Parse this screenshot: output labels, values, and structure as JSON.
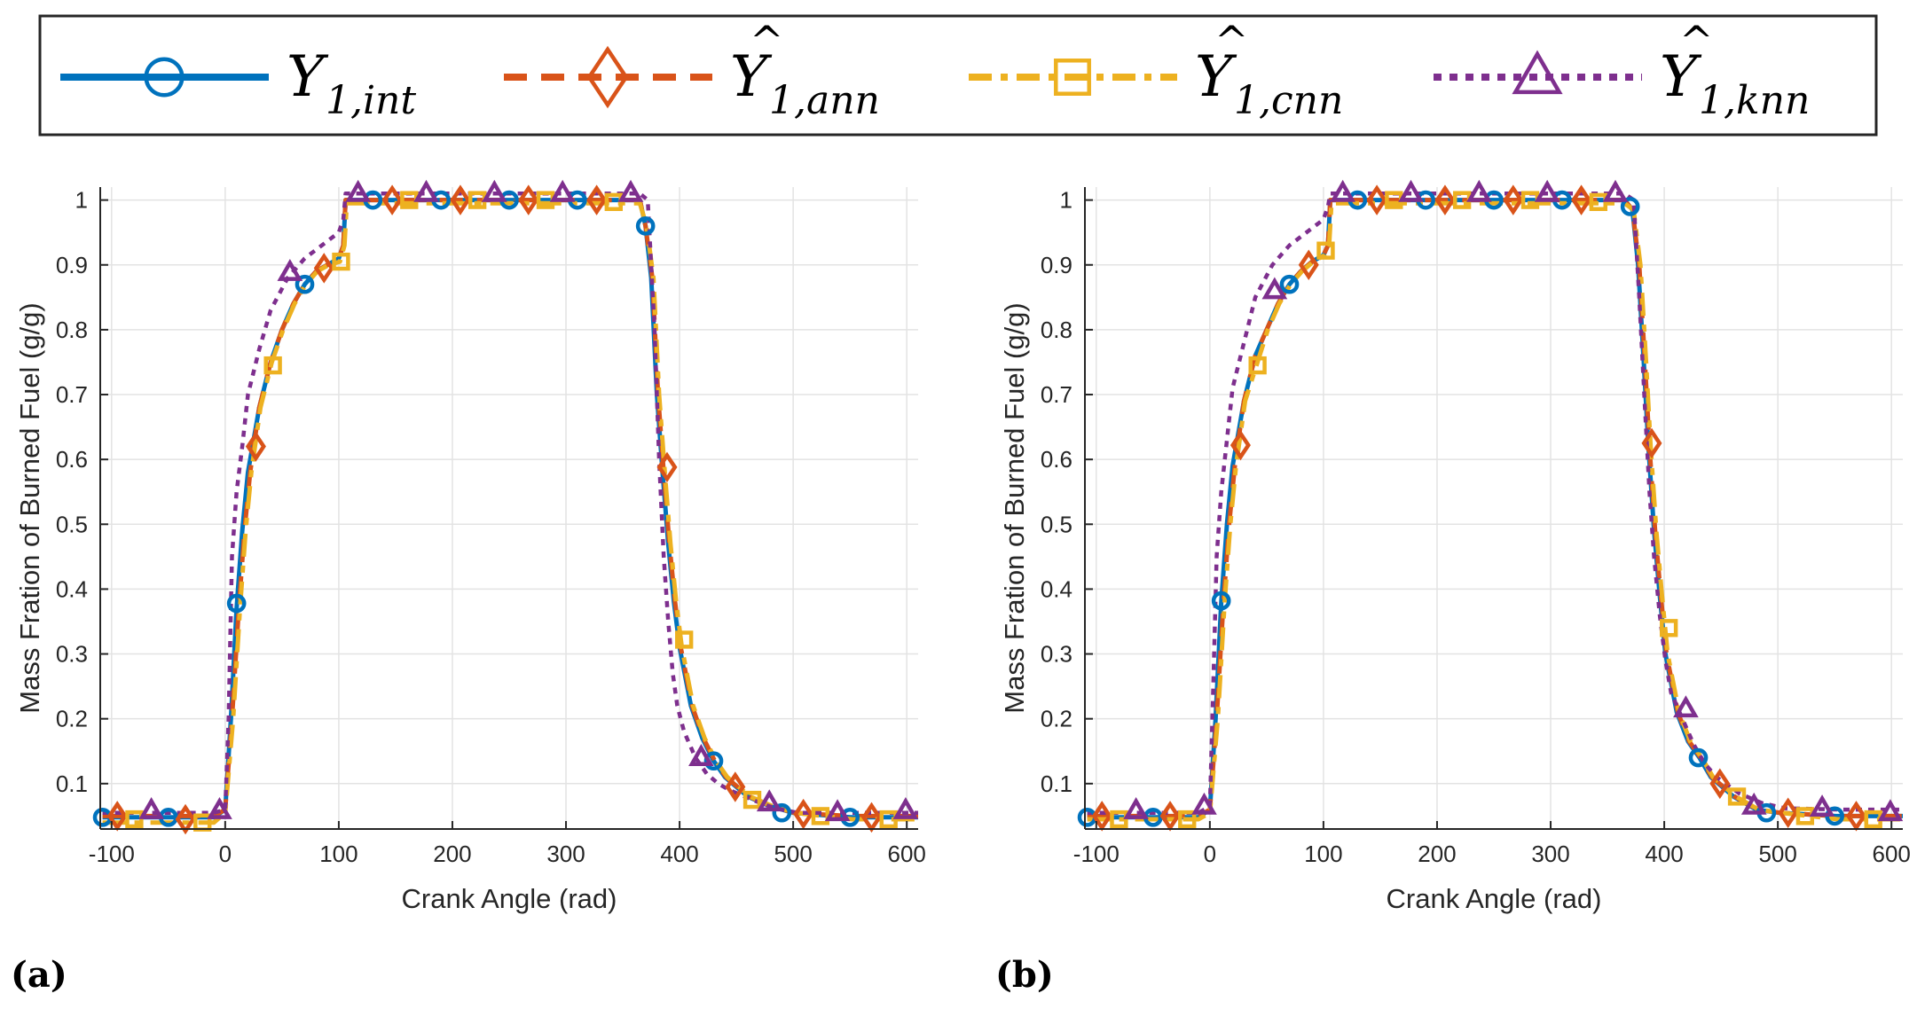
{
  "legend": {
    "entries": [
      {
        "symbol": "Y",
        "subscript": "1,int",
        "hat": "",
        "color": "#0072BD",
        "marker": "circle",
        "dash": "solid"
      },
      {
        "symbol": "Y",
        "subscript": "1,ann",
        "hat": "^",
        "color": "#D95319",
        "marker": "diamond",
        "dash": "dashed"
      },
      {
        "symbol": "Y",
        "subscript": "1,cnn",
        "hat": "^",
        "color": "#EDB120",
        "marker": "square",
        "dash": "dashdot"
      },
      {
        "symbol": "Y",
        "subscript": "1,knn",
        "hat": "^",
        "color": "#7E2F8E",
        "marker": "triangle",
        "dash": "dotted"
      }
    ]
  },
  "chart_data": [
    {
      "type": "line",
      "panel_label": "(a)",
      "xlabel": "Crank Angle (rad)",
      "ylabel": "Mass Fration of Burned Fuel (g/g)",
      "xlim": [
        -110,
        610
      ],
      "ylim": [
        0.03,
        1.02
      ],
      "xticks": [
        -100,
        0,
        100,
        200,
        300,
        400,
        500,
        600
      ],
      "xtick_labels": [
        "-100",
        "0",
        "100",
        "200",
        "300",
        "400",
        "500",
        "600"
      ],
      "yticks": [
        0.1,
        0.2,
        0.3,
        0.4,
        0.5,
        0.6,
        0.7,
        0.8,
        0.9,
        1
      ],
      "ytick_labels": [
        "0.1",
        "0.2",
        "0.3",
        "0.4",
        "0.5",
        "0.6",
        "0.7",
        "0.8",
        "0.9",
        "1"
      ],
      "grid": true,
      "series": [
        {
          "name": "Y1,int",
          "x": [
            -108,
            -10,
            0,
            5,
            10,
            15,
            20,
            30,
            40,
            50,
            60,
            70,
            80,
            90,
            100,
            104,
            106,
            110,
            150,
            200,
            250,
            300,
            350,
            365,
            370,
            375,
            380,
            385,
            390,
            395,
            400,
            410,
            420,
            430,
            440,
            460,
            480,
            500,
            550,
            610
          ],
          "y": [
            0.048,
            0.048,
            0.06,
            0.2,
            0.37,
            0.49,
            0.58,
            0.68,
            0.75,
            0.8,
            0.84,
            0.87,
            0.89,
            0.9,
            0.91,
            0.93,
            1.0,
            1.0,
            1.0,
            1.0,
            1.0,
            1.0,
            1.0,
            1.0,
            0.96,
            0.88,
            0.7,
            0.58,
            0.47,
            0.38,
            0.31,
            0.22,
            0.17,
            0.135,
            0.11,
            0.08,
            0.065,
            0.055,
            0.048,
            0.048
          ]
        },
        {
          "name": "Ŷ1,ann",
          "x": [
            -108,
            -10,
            0,
            6,
            12,
            17,
            22,
            30,
            40,
            50,
            60,
            70,
            80,
            90,
            100,
            104,
            106,
            110,
            150,
            200,
            250,
            300,
            350,
            365,
            370,
            376,
            381,
            386,
            391,
            396,
            401,
            411,
            421,
            431,
            441,
            461,
            481,
            501,
            551,
            610
          ],
          "y": [
            0.05,
            0.05,
            0.06,
            0.2,
            0.37,
            0.49,
            0.58,
            0.68,
            0.75,
            0.8,
            0.84,
            0.87,
            0.89,
            0.9,
            0.91,
            0.93,
            1.0,
            1.0,
            1.0,
            1.0,
            1.0,
            1.0,
            1.0,
            1.0,
            0.96,
            0.88,
            0.7,
            0.58,
            0.47,
            0.38,
            0.31,
            0.22,
            0.17,
            0.135,
            0.11,
            0.08,
            0.065,
            0.055,
            0.05,
            0.05
          ]
        },
        {
          "name": "Ŷ1,cnn",
          "x": [
            -108,
            -10,
            0,
            7,
            13,
            18,
            23,
            31,
            41,
            51,
            61,
            71,
            81,
            91,
            101,
            105,
            107,
            111,
            150,
            200,
            250,
            300,
            350,
            365,
            371,
            377,
            382,
            387,
            392,
            397,
            402,
            412,
            422,
            432,
            442,
            462,
            482,
            502,
            552,
            610
          ],
          "y": [
            0.04,
            0.04,
            0.055,
            0.2,
            0.37,
            0.49,
            0.58,
            0.68,
            0.75,
            0.8,
            0.84,
            0.87,
            0.89,
            0.9,
            0.905,
            0.93,
            0.995,
            0.995,
            0.995,
            0.995,
            0.995,
            0.995,
            0.995,
            0.995,
            0.96,
            0.88,
            0.7,
            0.58,
            0.47,
            0.38,
            0.31,
            0.22,
            0.17,
            0.135,
            0.11,
            0.08,
            0.065,
            0.055,
            0.045,
            0.045
          ]
        },
        {
          "name": "Ŷ1,knn",
          "x": [
            -108,
            -10,
            0,
            3,
            6,
            10,
            15,
            20,
            30,
            40,
            55,
            70,
            85,
            100,
            104,
            106,
            110,
            150,
            200,
            250,
            300,
            350,
            365,
            372,
            378,
            382,
            386,
            390,
            394,
            398,
            404,
            414,
            424,
            434,
            444,
            464,
            484,
            504,
            554,
            610
          ],
          "y": [
            0.055,
            0.055,
            0.06,
            0.2,
            0.45,
            0.55,
            0.62,
            0.7,
            0.77,
            0.83,
            0.88,
            0.91,
            0.93,
            0.95,
            0.97,
            1.01,
            1.01,
            1.01,
            1.01,
            1.01,
            1.01,
            1.01,
            1.01,
            1.0,
            0.8,
            0.6,
            0.45,
            0.35,
            0.27,
            0.22,
            0.18,
            0.14,
            0.115,
            0.1,
            0.09,
            0.075,
            0.062,
            0.055,
            0.055,
            0.055
          ]
        }
      ],
      "markers": {
        "Y1,int": {
          "x": [
            -108,
            -50,
            10,
            70,
            130,
            190,
            250,
            310,
            370,
            430,
            490,
            550
          ],
          "y": [
            0.048,
            0.048,
            0.378,
            0.87,
            1.0,
            1.0,
            1.0,
            1.0,
            0.96,
            0.135,
            0.055,
            0.048
          ]
        },
        "Ŷ1,ann": {
          "x": [
            -95,
            -35,
            27,
            87,
            147,
            207,
            267,
            327,
            389,
            449,
            509,
            569
          ],
          "y": [
            0.05,
            0.045,
            0.62,
            0.895,
            1.0,
            1.0,
            1.0,
            1.0,
            0.588,
            0.095,
            0.053,
            0.048
          ]
        },
        "Ŷ1,cnn": {
          "x": [
            -80,
            -20,
            42,
            102,
            162,
            222,
            282,
            342,
            404,
            464,
            524,
            584
          ],
          "y": [
            0.045,
            0.04,
            0.745,
            0.905,
            1.0,
            1.0,
            1.0,
            0.997,
            0.322,
            0.075,
            0.05,
            0.045
          ]
        },
        "Ŷ1,knn": {
          "x": [
            -65,
            -5,
            57,
            117,
            177,
            237,
            297,
            357,
            419,
            479,
            539,
            599
          ],
          "y": [
            0.058,
            0.058,
            0.888,
            1.01,
            1.01,
            1.01,
            1.01,
            1.01,
            0.14,
            0.07,
            0.055,
            0.058
          ]
        }
      }
    },
    {
      "type": "line",
      "panel_label": "(b)",
      "xlabel": "Crank Angle (rad)",
      "ylabel": "Mass Fration of Burned Fuel (g/g)",
      "xlim": [
        -110,
        610
      ],
      "ylim": [
        0.03,
        1.02
      ],
      "xticks": [
        -100,
        0,
        100,
        200,
        300,
        400,
        500,
        600
      ],
      "xtick_labels": [
        "-100",
        "0",
        "100",
        "200",
        "300",
        "400",
        "500",
        "600"
      ],
      "yticks": [
        0.1,
        0.2,
        0.3,
        0.4,
        0.5,
        0.6,
        0.7,
        0.8,
        0.9,
        1
      ],
      "ytick_labels": [
        "0.1",
        "0.2",
        "0.3",
        "0.4",
        "0.5",
        "0.6",
        "0.7",
        "0.8",
        "0.9",
        "1"
      ],
      "grid": true,
      "series": [
        {
          "name": "Y1,int",
          "x": [
            -108,
            -10,
            0,
            5,
            10,
            15,
            20,
            30,
            40,
            50,
            60,
            70,
            80,
            90,
            100,
            104,
            106,
            110,
            150,
            200,
            250,
            300,
            350,
            365,
            372,
            377,
            382,
            386,
            391,
            396,
            401,
            411,
            421,
            431,
            441,
            461,
            481,
            501,
            551,
            610
          ],
          "y": [
            0.048,
            0.048,
            0.06,
            0.2,
            0.38,
            0.5,
            0.59,
            0.69,
            0.76,
            0.8,
            0.84,
            0.87,
            0.89,
            0.905,
            0.915,
            0.93,
            1.0,
            1.0,
            1.0,
            1.0,
            1.0,
            1.0,
            1.0,
            1.0,
            0.985,
            0.9,
            0.75,
            0.62,
            0.49,
            0.39,
            0.3,
            0.21,
            0.165,
            0.14,
            0.11,
            0.08,
            0.06,
            0.055,
            0.05,
            0.05
          ]
        },
        {
          "name": "Ŷ1,ann",
          "x": [
            -108,
            -10,
            0,
            6,
            12,
            17,
            22,
            30,
            40,
            50,
            60,
            70,
            80,
            90,
            100,
            104,
            106,
            110,
            150,
            200,
            250,
            300,
            350,
            365,
            372,
            378,
            383,
            387,
            392,
            397,
            402,
            412,
            422,
            432,
            442,
            462,
            482,
            502,
            552,
            610
          ],
          "y": [
            0.05,
            0.05,
            0.06,
            0.2,
            0.38,
            0.5,
            0.59,
            0.69,
            0.76,
            0.8,
            0.84,
            0.87,
            0.89,
            0.905,
            0.915,
            0.93,
            1.0,
            1.0,
            1.0,
            1.0,
            1.0,
            1.0,
            1.0,
            1.0,
            0.985,
            0.9,
            0.75,
            0.62,
            0.49,
            0.39,
            0.3,
            0.21,
            0.165,
            0.14,
            0.11,
            0.08,
            0.06,
            0.055,
            0.05,
            0.05
          ]
        },
        {
          "name": "Ŷ1,cnn",
          "x": [
            -108,
            -10,
            0,
            7,
            13,
            18,
            23,
            31,
            41,
            51,
            61,
            71,
            81,
            91,
            101,
            105,
            107,
            111,
            150,
            200,
            250,
            300,
            350,
            365,
            373,
            379,
            384,
            388,
            393,
            398,
            403,
            413,
            423,
            433,
            443,
            463,
            483,
            503,
            553,
            610
          ],
          "y": [
            0.045,
            0.045,
            0.055,
            0.2,
            0.38,
            0.5,
            0.59,
            0.69,
            0.745,
            0.8,
            0.84,
            0.87,
            0.89,
            0.905,
            0.915,
            0.93,
            0.995,
            0.995,
            0.995,
            0.995,
            0.995,
            0.995,
            0.995,
            0.995,
            0.985,
            0.9,
            0.75,
            0.62,
            0.49,
            0.39,
            0.3,
            0.21,
            0.165,
            0.14,
            0.11,
            0.08,
            0.06,
            0.055,
            0.045,
            0.045
          ]
        },
        {
          "name": "Ŷ1,knn",
          "x": [
            -108,
            -10,
            0,
            3,
            6,
            10,
            15,
            20,
            30,
            40,
            55,
            70,
            85,
            100,
            104,
            106,
            110,
            150,
            200,
            250,
            300,
            350,
            365,
            373,
            378,
            383,
            387,
            391,
            396,
            401,
            406,
            416,
            426,
            436,
            446,
            466,
            486,
            506,
            556,
            610
          ],
          "y": [
            0.055,
            0.055,
            0.065,
            0.25,
            0.45,
            0.55,
            0.63,
            0.71,
            0.78,
            0.85,
            0.9,
            0.93,
            0.95,
            0.97,
            0.99,
            1.01,
            1.01,
            1.01,
            1.01,
            1.01,
            1.01,
            1.01,
            1.01,
            1.0,
            0.85,
            0.68,
            0.55,
            0.45,
            0.36,
            0.29,
            0.24,
            0.2,
            0.16,
            0.13,
            0.11,
            0.085,
            0.07,
            0.062,
            0.06,
            0.06
          ]
        }
      ],
      "markers": {
        "Y1,int": {
          "x": [
            -108,
            -50,
            10,
            70,
            130,
            190,
            250,
            310,
            370,
            430,
            490,
            550
          ],
          "y": [
            0.048,
            0.048,
            0.382,
            0.87,
            1.0,
            1.0,
            1.0,
            1.0,
            0.99,
            0.14,
            0.055,
            0.05
          ]
        },
        "Ŷ1,ann": {
          "x": [
            -95,
            -35,
            27,
            87,
            147,
            207,
            267,
            327,
            389,
            449,
            509,
            569
          ],
          "y": [
            0.05,
            0.05,
            0.622,
            0.9,
            1.0,
            1.0,
            1.0,
            1.0,
            0.625,
            0.1,
            0.055,
            0.05
          ]
        },
        "Ŷ1,cnn": {
          "x": [
            -80,
            -20,
            42,
            102,
            162,
            222,
            282,
            342,
            404,
            464,
            524,
            584
          ],
          "y": [
            0.045,
            0.045,
            0.745,
            0.922,
            1.0,
            1.0,
            1.0,
            0.997,
            0.34,
            0.08,
            0.05,
            0.045
          ]
        },
        "Ŷ1,knn": {
          "x": [
            -65,
            -5,
            57,
            117,
            177,
            237,
            297,
            357,
            419,
            479,
            539,
            599
          ],
          "y": [
            0.058,
            0.065,
            0.86,
            1.01,
            1.01,
            1.01,
            1.01,
            1.01,
            0.215,
            0.065,
            0.062,
            0.055
          ]
        }
      }
    }
  ]
}
